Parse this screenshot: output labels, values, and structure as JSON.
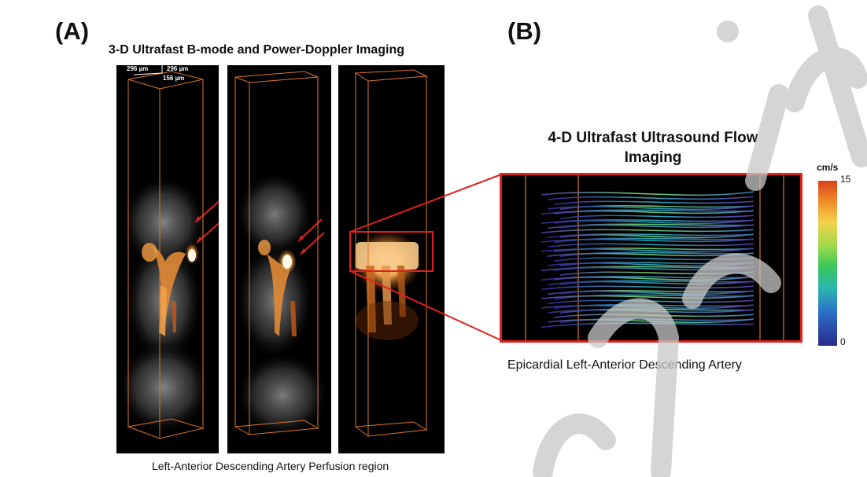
{
  "panel_a": {
    "label": "(A)",
    "title": "3-D Ultrafast B-mode and Power-Doppler Imaging",
    "scale_labels": [
      "296 µm",
      "296 µm",
      "156 µm"
    ],
    "caption": "Left-Anterior Descending Artery Perfusion region"
  },
  "panel_b": {
    "label": "(B)",
    "title_line1": "4-D Ultrafast Ultrasound Flow",
    "title_line2": "Imaging",
    "caption": "Epicardial Left-Anterior Descending Artery",
    "colorbar": {
      "unit": "cm/s",
      "max": "15",
      "min": "0"
    }
  },
  "colors": {
    "frame_orange": "#d9772b",
    "highlight_red": "#e02020",
    "watermark_grey": "#c8c8c8"
  }
}
